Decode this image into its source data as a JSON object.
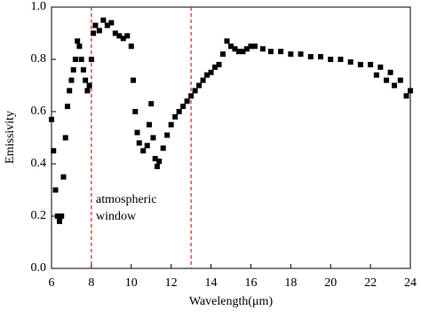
{
  "chart_data": {
    "type": "scatter",
    "x_label": "Wavelength(μm)",
    "y_label": "Emissivity",
    "annotation": [
      "atmospheric",
      "window"
    ],
    "xlim": [
      6,
      24
    ],
    "xticks": [
      6,
      8,
      10,
      12,
      14,
      16,
      18,
      20,
      22,
      24
    ],
    "ylim": [
      0,
      1
    ],
    "yticks": [
      {
        "value": 0,
        "label": "0.0"
      },
      0.2,
      0.4,
      0.6,
      0.8,
      {
        "value": 1,
        "label": "1.0"
      }
    ],
    "vlines": [
      8,
      13
    ],
    "vline_color": "#e02020",
    "series": [
      {
        "color": "#000000",
        "x": [
          6.0,
          6.1,
          6.2,
          6.3,
          6.4,
          6.5,
          6.6,
          6.7,
          6.8,
          6.9,
          7.0,
          7.1,
          7.2,
          7.3,
          7.4,
          7.5,
          7.6,
          7.7,
          7.8,
          7.9,
          8.0,
          8.1,
          8.2,
          8.4,
          8.6,
          8.8,
          9.0,
          9.2,
          9.4,
          9.6,
          9.8,
          10.0,
          10.1,
          10.2,
          10.3,
          10.4,
          10.6,
          10.8,
          10.9,
          11.0,
          11.1,
          11.2,
          11.3,
          11.4,
          11.6,
          11.8,
          12.0,
          12.2,
          12.4,
          12.6,
          12.8,
          13.0,
          13.2,
          13.4,
          13.6,
          13.8,
          14.0,
          14.2,
          14.4,
          14.6,
          14.8,
          15.0,
          15.2,
          15.4,
          15.6,
          15.8,
          16.0,
          16.2,
          16.6,
          17.0,
          17.5,
          18.0,
          18.5,
          19.0,
          19.5,
          20.0,
          20.5,
          21.0,
          21.5,
          22.0,
          22.3,
          22.5,
          22.8,
          23.0,
          23.2,
          23.5,
          23.8,
          24.0
        ],
        "values": [
          0.57,
          0.45,
          0.3,
          0.2,
          0.18,
          0.2,
          0.35,
          0.5,
          0.62,
          0.68,
          0.72,
          0.76,
          0.8,
          0.87,
          0.85,
          0.8,
          0.76,
          0.72,
          0.68,
          0.7,
          0.8,
          0.9,
          0.93,
          0.91,
          0.95,
          0.93,
          0.94,
          0.9,
          0.89,
          0.88,
          0.89,
          0.85,
          0.72,
          0.6,
          0.52,
          0.48,
          0.45,
          0.47,
          0.55,
          0.63,
          0.5,
          0.42,
          0.39,
          0.41,
          0.46,
          0.51,
          0.55,
          0.58,
          0.6,
          0.62,
          0.64,
          0.66,
          0.68,
          0.7,
          0.72,
          0.74,
          0.75,
          0.77,
          0.78,
          0.82,
          0.87,
          0.85,
          0.84,
          0.83,
          0.83,
          0.84,
          0.85,
          0.85,
          0.84,
          0.83,
          0.83,
          0.82,
          0.82,
          0.81,
          0.81,
          0.8,
          0.8,
          0.79,
          0.78,
          0.78,
          0.74,
          0.77,
          0.72,
          0.75,
          0.7,
          0.72,
          0.66,
          0.68
        ]
      }
    ]
  }
}
